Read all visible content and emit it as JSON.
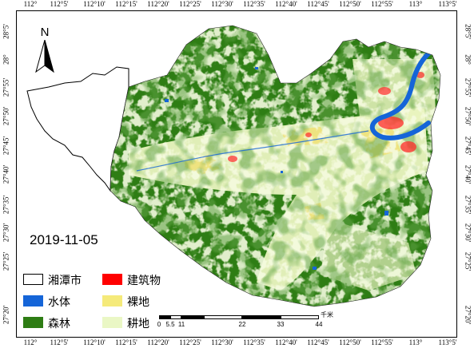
{
  "map": {
    "date_label": "2019-11-05",
    "north_label": "N",
    "top_ticks": [
      "112°",
      "112°5'",
      "112°10'",
      "112°15'",
      "112°20'",
      "112°25'",
      "112°30'",
      "112°35'",
      "112°40'",
      "112°45'",
      "112°50'",
      "112°55'",
      "113°",
      "113°5'"
    ],
    "bottom_ticks": [
      "112°",
      "112°5'",
      "112°10'",
      "112°15'",
      "112°20'",
      "112°25'",
      "112°30'",
      "112°35'",
      "112°40'",
      "112°45'",
      "112°50'",
      "112°55'",
      "113°",
      "113°5'"
    ],
    "left_ticks": [
      "28°5'",
      "28°",
      "27°55'",
      "27°50'",
      "27°45'",
      "27°40'",
      "27°35'",
      "27°30'",
      "27°25'",
      "27°20'"
    ],
    "right_ticks": [
      "28°5'",
      "28°",
      "27°55'",
      "27°50'",
      "27°45'",
      "27°40'",
      "27°35'",
      "27°30'",
      "27°25'",
      "27°20'"
    ],
    "legend": [
      {
        "label": "湘潭市",
        "color": "#ffffff"
      },
      {
        "label": "水体",
        "color": "#1565d8"
      },
      {
        "label": "森林",
        "color": "#2e7d14"
      },
      {
        "label": "建筑物",
        "color": "#ff0000"
      },
      {
        "label": "裸地",
        "color": "#f5ea7a"
      },
      {
        "label": "耕地",
        "color": "#eaf7c5"
      }
    ],
    "scale": {
      "unit": "千米",
      "labels": [
        "0",
        "5.5",
        "11",
        "22",
        "33",
        "44"
      ]
    },
    "colors": {
      "forest": "#2e7d14",
      "forest_dark": "#1f5e0c",
      "cropland": "#eaf4c0",
      "bare": "#efe17a",
      "water": "#1565d8",
      "built": "#ff2a2a",
      "outline": "#000000"
    }
  }
}
